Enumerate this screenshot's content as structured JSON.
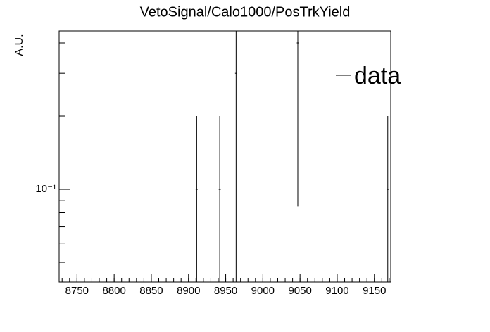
{
  "chart_data": {
    "type": "errorbar",
    "title": "VetoSignal/Calo1000/PosTrkYield",
    "y_label": "A.U.",
    "legend": "data",
    "legend_position": "upper right",
    "color": "#000000",
    "x": [
      8911,
      8942,
      8964,
      9047,
      9168
    ],
    "values": [
      0.1,
      0.1,
      0.3,
      0.4,
      0.1
    ],
    "errors": [
      0.1,
      0.1,
      0.3,
      0.315,
      0.1
    ],
    "xlim": [
      8726,
      9172
    ],
    "xticks": [
      8750,
      8800,
      8850,
      8900,
      8950,
      9000,
      9050,
      9100,
      9150
    ],
    "ylim": [
      0.0415,
      0.448
    ],
    "yscale": "log",
    "yticks": [
      {
        "value": 0.1,
        "label": "10⁻¹"
      }
    ],
    "yminorticks": [
      0.05,
      0.06,
      0.07,
      0.08,
      0.09,
      0.2,
      0.3,
      0.4
    ]
  }
}
